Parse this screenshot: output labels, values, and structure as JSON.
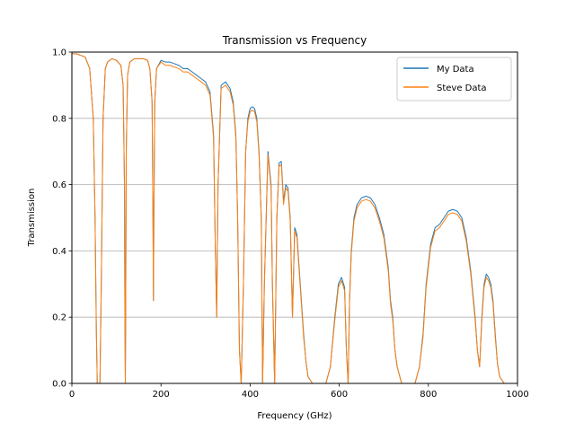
{
  "chart_data": {
    "type": "line",
    "title": "Transmission vs Frequency",
    "xlabel": "Frequency (GHz)",
    "ylabel": "Transmission",
    "xlim": [
      0,
      1000
    ],
    "ylim": [
      0.0,
      1.0
    ],
    "xticks": [
      0,
      200,
      400,
      600,
      800,
      1000
    ],
    "xtick_labels": [
      "0",
      "200",
      "400",
      "600",
      "800",
      "1000"
    ],
    "yticks": [
      0.0,
      0.2,
      0.4,
      0.6,
      0.8,
      1.0
    ],
    "ytick_labels": [
      "0.0",
      "0.2",
      "0.4",
      "0.6",
      "0.8",
      "1.0"
    ],
    "grid": "horizontal",
    "legend_position": "top-right",
    "series": [
      {
        "name": "My Data",
        "color": "#1f77b4",
        "x": [
          0,
          10,
          20,
          30,
          40,
          48,
          52,
          55,
          57,
          60,
          63,
          66,
          70,
          75,
          80,
          90,
          100,
          110,
          115,
          118,
          119,
          120,
          121,
          122,
          125,
          130,
          140,
          150,
          160,
          170,
          175,
          180,
          182,
          183,
          184,
          186,
          190,
          200,
          210,
          220,
          230,
          240,
          250,
          260,
          270,
          280,
          290,
          300,
          310,
          318,
          322,
          325,
          328,
          335,
          345,
          355,
          362,
          368,
          372,
          376,
          380,
          385,
          390,
          395,
          400,
          405,
          410,
          415,
          420,
          425,
          428,
          432,
          440,
          447,
          450,
          455,
          460,
          465,
          470,
          475,
          480,
          485,
          490,
          495,
          500,
          505,
          510,
          515,
          520,
          525,
          530,
          540,
          550,
          560,
          570,
          580,
          590,
          598,
          605,
          612,
          616,
          620,
          623,
          627,
          633,
          640,
          650,
          660,
          670,
          680,
          690,
          700,
          710,
          715,
          720,
          725,
          730,
          740,
          750,
          760,
          770,
          780,
          788,
          795,
          805,
          815,
          825,
          835,
          845,
          855,
          865,
          875,
          885,
          895,
          905,
          910,
          915,
          920,
          925,
          930,
          935,
          940,
          945,
          950,
          955,
          960,
          970,
          980,
          1000
        ],
        "y": [
          0.995,
          0.995,
          0.99,
          0.985,
          0.95,
          0.8,
          0.5,
          0.15,
          0.0,
          0.0,
          0.0,
          0.3,
          0.8,
          0.95,
          0.97,
          0.98,
          0.975,
          0.96,
          0.9,
          0.6,
          0.2,
          0.0,
          0.3,
          0.7,
          0.93,
          0.97,
          0.98,
          0.98,
          0.98,
          0.975,
          0.95,
          0.85,
          0.5,
          0.25,
          0.5,
          0.85,
          0.95,
          0.975,
          0.97,
          0.97,
          0.965,
          0.96,
          0.95,
          0.95,
          0.94,
          0.93,
          0.92,
          0.91,
          0.88,
          0.75,
          0.4,
          0.2,
          0.6,
          0.9,
          0.91,
          0.89,
          0.85,
          0.75,
          0.5,
          0.1,
          0.0,
          0.3,
          0.7,
          0.8,
          0.83,
          0.835,
          0.83,
          0.8,
          0.7,
          0.5,
          0.0,
          0.3,
          0.7,
          0.6,
          0.3,
          0.0,
          0.5,
          0.665,
          0.67,
          0.55,
          0.6,
          0.59,
          0.5,
          0.2,
          0.47,
          0.45,
          0.35,
          0.25,
          0.15,
          0.07,
          0.02,
          0.0,
          0.0,
          0.0,
          0.0,
          0.05,
          0.2,
          0.3,
          0.32,
          0.29,
          0.1,
          0.0,
          0.25,
          0.4,
          0.5,
          0.54,
          0.56,
          0.565,
          0.56,
          0.54,
          0.5,
          0.45,
          0.35,
          0.25,
          0.2,
          0.1,
          0.05,
          0.0,
          0.0,
          0.0,
          0.0,
          0.05,
          0.15,
          0.3,
          0.42,
          0.47,
          0.48,
          0.5,
          0.52,
          0.525,
          0.52,
          0.5,
          0.44,
          0.34,
          0.2,
          0.1,
          0.05,
          0.2,
          0.3,
          0.33,
          0.32,
          0.3,
          0.25,
          0.15,
          0.06,
          0.02,
          0.0,
          0.0,
          0.0
        ]
      },
      {
        "name": "Steve Data",
        "color": "#ff7f0e",
        "x": [
          0,
          10,
          20,
          30,
          40,
          48,
          52,
          55,
          57,
          60,
          63,
          66,
          70,
          75,
          80,
          90,
          100,
          110,
          115,
          118,
          119,
          120,
          121,
          122,
          125,
          130,
          140,
          150,
          160,
          170,
          175,
          180,
          182,
          183,
          184,
          186,
          190,
          200,
          210,
          220,
          230,
          240,
          250,
          260,
          270,
          280,
          290,
          300,
          310,
          318,
          322,
          325,
          328,
          335,
          345,
          355,
          362,
          368,
          372,
          376,
          380,
          385,
          390,
          395,
          400,
          405,
          410,
          415,
          420,
          425,
          428,
          432,
          440,
          447,
          450,
          455,
          460,
          465,
          470,
          475,
          480,
          485,
          490,
          495,
          500,
          505,
          510,
          515,
          520,
          525,
          530,
          540,
          550,
          560,
          570,
          580,
          590,
          598,
          605,
          612,
          616,
          620,
          623,
          627,
          633,
          640,
          650,
          660,
          670,
          680,
          690,
          700,
          710,
          715,
          720,
          725,
          730,
          740,
          750,
          760,
          770,
          780,
          788,
          795,
          805,
          815,
          825,
          835,
          845,
          855,
          865,
          875,
          885,
          895,
          905,
          910,
          915,
          920,
          925,
          930,
          935,
          940,
          945,
          950,
          955,
          960,
          970,
          980,
          1000
        ],
        "y": [
          0.995,
          0.995,
          0.99,
          0.985,
          0.95,
          0.8,
          0.5,
          0.15,
          0.0,
          0.0,
          0.0,
          0.3,
          0.8,
          0.95,
          0.97,
          0.98,
          0.975,
          0.96,
          0.9,
          0.6,
          0.2,
          0.0,
          0.3,
          0.7,
          0.93,
          0.97,
          0.98,
          0.98,
          0.98,
          0.975,
          0.95,
          0.85,
          0.5,
          0.25,
          0.5,
          0.85,
          0.95,
          0.97,
          0.96,
          0.96,
          0.955,
          0.95,
          0.94,
          0.94,
          0.93,
          0.92,
          0.91,
          0.9,
          0.87,
          0.74,
          0.4,
          0.2,
          0.6,
          0.89,
          0.9,
          0.88,
          0.84,
          0.74,
          0.5,
          0.1,
          0.0,
          0.3,
          0.7,
          0.79,
          0.82,
          0.825,
          0.82,
          0.79,
          0.69,
          0.5,
          0.0,
          0.3,
          0.69,
          0.59,
          0.3,
          0.0,
          0.5,
          0.655,
          0.66,
          0.54,
          0.59,
          0.58,
          0.49,
          0.2,
          0.46,
          0.44,
          0.34,
          0.24,
          0.14,
          0.07,
          0.02,
          0.0,
          0.0,
          0.0,
          0.0,
          0.05,
          0.19,
          0.29,
          0.31,
          0.28,
          0.1,
          0.0,
          0.24,
          0.39,
          0.49,
          0.53,
          0.55,
          0.555,
          0.55,
          0.53,
          0.49,
          0.44,
          0.34,
          0.24,
          0.19,
          0.1,
          0.05,
          0.0,
          0.0,
          0.0,
          0.0,
          0.05,
          0.14,
          0.29,
          0.41,
          0.46,
          0.47,
          0.49,
          0.51,
          0.515,
          0.51,
          0.49,
          0.43,
          0.33,
          0.19,
          0.1,
          0.05,
          0.19,
          0.29,
          0.32,
          0.31,
          0.29,
          0.24,
          0.14,
          0.06,
          0.02,
          0.0,
          0.0,
          0.0
        ]
      }
    ]
  }
}
